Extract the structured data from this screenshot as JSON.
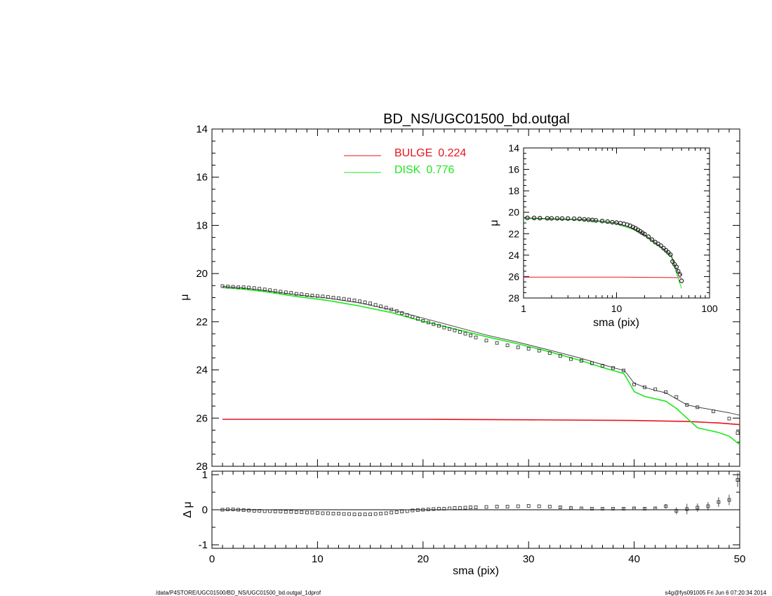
{
  "page": {
    "title": "BD_NS/UGC01500_bd.outgal",
    "footer_left": "/data/P4STORE/UGC01500/BD_NS/UGC01500_bd.outgal_1dprof",
    "footer_right": "s4g@fys091005  Fri Jun  6 07:20:34 2014"
  },
  "colors": {
    "bulge": "#e8141e",
    "disk": "#1ee81e",
    "data": "#000000",
    "model": "#444444"
  },
  "chart_data": [
    {
      "name": "main-profile",
      "type": "line",
      "title": "BD_NS/UGC01500_bd.outgal",
      "xlabel": "",
      "ylabel": "μ",
      "xlim": [
        0,
        50
      ],
      "ylim": [
        28,
        14
      ],
      "y_inverted": true,
      "yticks": [
        14,
        16,
        18,
        20,
        22,
        24,
        26,
        28
      ],
      "legend": {
        "position": "top-center",
        "entries": [
          {
            "label": "BULGE",
            "value": "0.224",
            "color": "#e8141e"
          },
          {
            "label": "DISK",
            "value": "0.776",
            "color": "#1ee81e"
          }
        ]
      },
      "series": [
        {
          "name": "BULGE",
          "color": "#e8141e",
          "x": [
            1,
            10,
            20,
            30,
            40,
            45,
            48,
            50
          ],
          "y": [
            26.05,
            26.05,
            26.05,
            26.07,
            26.1,
            26.14,
            26.2,
            26.27
          ]
        },
        {
          "name": "DISK",
          "color": "#1ee81e",
          "x": [
            1,
            3,
            5,
            8,
            11,
            14,
            17,
            20,
            23,
            26,
            29,
            32,
            35,
            37,
            39,
            39.3,
            40,
            41,
            42,
            43,
            44,
            45,
            46,
            47,
            48,
            49,
            50
          ],
          "y": [
            20.58,
            20.65,
            20.75,
            20.95,
            21.12,
            21.35,
            21.62,
            21.98,
            22.3,
            22.62,
            22.92,
            23.25,
            23.62,
            23.9,
            24.15,
            24.35,
            24.9,
            25.1,
            25.2,
            25.3,
            25.6,
            26.0,
            26.4,
            26.5,
            26.6,
            26.75,
            27.1
          ]
        },
        {
          "name": "model",
          "color": "#444444",
          "x": [
            1,
            3,
            5,
            8,
            11,
            14,
            17,
            20,
            23,
            26,
            29,
            32,
            35,
            37,
            39,
            39.3,
            40,
            41,
            42,
            43,
            44,
            45,
            46,
            47,
            48,
            49,
            50
          ],
          "y": [
            20.53,
            20.6,
            20.7,
            20.88,
            21.02,
            21.22,
            21.5,
            21.85,
            22.2,
            22.55,
            22.85,
            23.18,
            23.52,
            23.78,
            24.02,
            24.15,
            24.55,
            24.72,
            24.85,
            24.95,
            25.2,
            25.45,
            25.55,
            25.62,
            25.7,
            25.78,
            25.88
          ]
        }
      ],
      "observed": {
        "x": [
          1,
          1.5,
          2,
          2.5,
          3,
          3.5,
          4,
          4.5,
          5,
          5.5,
          6,
          6.5,
          7,
          7.5,
          8,
          8.5,
          9,
          9.5,
          10,
          10.5,
          11,
          11.5,
          12,
          12.5,
          13,
          13.5,
          14,
          14.5,
          15,
          15.5,
          16,
          16.5,
          17,
          17.5,
          18,
          18.5,
          19,
          19.5,
          20,
          20.5,
          21,
          21.5,
          22,
          22.5,
          23,
          23.5,
          24,
          24.5,
          25,
          26,
          27,
          28,
          29,
          30,
          31,
          32,
          33,
          34,
          35,
          36,
          37,
          38,
          39,
          40,
          41,
          42,
          43,
          44,
          45,
          46,
          47.5,
          49,
          49.8
        ],
        "y": [
          20.52,
          20.54,
          20.55,
          20.57,
          20.57,
          20.58,
          20.6,
          20.63,
          20.66,
          20.69,
          20.72,
          20.75,
          20.78,
          20.8,
          20.84,
          20.86,
          20.89,
          20.91,
          20.93,
          20.95,
          20.97,
          21.0,
          21.02,
          21.05,
          21.08,
          21.11,
          21.15,
          21.19,
          21.24,
          21.3,
          21.36,
          21.42,
          21.49,
          21.56,
          21.64,
          21.72,
          21.8,
          21.88,
          21.96,
          22.03,
          22.1,
          22.17,
          22.24,
          22.3,
          22.36,
          22.43,
          22.5,
          22.57,
          22.65,
          22.78,
          22.88,
          22.98,
          23.06,
          23.12,
          23.2,
          23.3,
          23.42,
          23.55,
          23.62,
          23.72,
          23.82,
          23.92,
          24.02,
          24.6,
          24.72,
          24.8,
          24.92,
          25.12,
          25.45,
          25.55,
          25.72,
          26.02,
          26.62
        ]
      }
    },
    {
      "name": "residuals",
      "type": "scatter",
      "xlabel": "sma (pix)",
      "ylabel": "Δ μ",
      "xlim": [
        0,
        50
      ],
      "ylim": [
        -1.1,
        1.1
      ],
      "xticks": [
        0,
        10,
        20,
        30,
        40,
        50
      ],
      "yticks": [
        -1,
        0,
        1
      ],
      "x": [
        1,
        1.5,
        2,
        2.5,
        3,
        3.5,
        4,
        4.5,
        5,
        5.5,
        6,
        6.5,
        7,
        7.5,
        8,
        8.5,
        9,
        9.5,
        10,
        10.5,
        11,
        11.5,
        12,
        12.5,
        13,
        13.5,
        14,
        14.5,
        15,
        15.5,
        16,
        16.5,
        17,
        17.5,
        18,
        18.5,
        19,
        19.5,
        20,
        20.5,
        21,
        21.5,
        22,
        22.5,
        23,
        23.5,
        24,
        24.5,
        25,
        26,
        27,
        28,
        29,
        30,
        31,
        32,
        33,
        34,
        35,
        36,
        37,
        38,
        39,
        40,
        41,
        42,
        43,
        44,
        45,
        46,
        47,
        48,
        49,
        49.8
      ],
      "y": [
        0.0,
        0.01,
        0.01,
        0.0,
        -0.01,
        -0.02,
        -0.03,
        -0.03,
        -0.04,
        -0.04,
        -0.05,
        -0.05,
        -0.06,
        -0.06,
        -0.07,
        -0.07,
        -0.08,
        -0.08,
        -0.09,
        -0.1,
        -0.1,
        -0.11,
        -0.11,
        -0.12,
        -0.12,
        -0.13,
        -0.13,
        -0.13,
        -0.13,
        -0.12,
        -0.11,
        -0.1,
        -0.08,
        -0.07,
        -0.05,
        -0.04,
        -0.02,
        -0.01,
        0.0,
        0.01,
        0.02,
        0.03,
        0.03,
        0.04,
        0.05,
        0.05,
        0.06,
        0.07,
        0.07,
        0.08,
        0.09,
        0.09,
        0.1,
        0.11,
        0.1,
        0.09,
        0.07,
        0.05,
        0.04,
        0.03,
        0.03,
        0.03,
        0.03,
        0.04,
        0.03,
        0.04,
        0.1,
        -0.03,
        0.02,
        0.06,
        0.1,
        0.22,
        0.28,
        0.85
      ],
      "err": [
        0.01,
        0.01,
        0.01,
        0.01,
        0.01,
        0.01,
        0.01,
        0.01,
        0.01,
        0.01,
        0.01,
        0.01,
        0.01,
        0.01,
        0.01,
        0.01,
        0.01,
        0.01,
        0.01,
        0.01,
        0.01,
        0.01,
        0.01,
        0.01,
        0.01,
        0.01,
        0.01,
        0.01,
        0.01,
        0.01,
        0.01,
        0.01,
        0.01,
        0.01,
        0.01,
        0.01,
        0.01,
        0.01,
        0.01,
        0.01,
        0.01,
        0.01,
        0.01,
        0.01,
        0.01,
        0.01,
        0.01,
        0.01,
        0.01,
        0.01,
        0.01,
        0.01,
        0.01,
        0.01,
        0.01,
        0.01,
        0.02,
        0.02,
        0.02,
        0.02,
        0.02,
        0.02,
        0.03,
        0.03,
        0.04,
        0.04,
        0.06,
        0.1,
        0.15,
        0.12,
        0.12,
        0.14,
        0.15,
        0.2
      ]
    },
    {
      "name": "inset-log-profile",
      "type": "line",
      "xlabel": "sma (pix)",
      "ylabel": "μ",
      "xscale": "log",
      "xlim": [
        1,
        100
      ],
      "ylim": [
        28,
        14
      ],
      "y_inverted": true,
      "xtick_labels": [
        "1",
        "10",
        "100"
      ],
      "yticks": [
        14,
        16,
        18,
        20,
        22,
        24,
        26,
        28
      ],
      "series": [
        {
          "name": "BULGE",
          "color": "#e8141e",
          "x": [
            1,
            10,
            30,
            50
          ],
          "y": [
            26.05,
            26.05,
            26.08,
            26.1
          ]
        },
        {
          "name": "DISK",
          "color": "#1ee81e",
          "x": [
            1,
            5,
            10,
            15,
            20,
            25,
            30,
            35,
            39,
            42,
            46,
            50
          ],
          "y": [
            20.58,
            20.75,
            21.1,
            21.6,
            22.2,
            22.8,
            23.3,
            23.8,
            24.2,
            25.1,
            26.2,
            27.1
          ]
        },
        {
          "name": "model",
          "color": "#444444",
          "x": [
            1,
            5,
            10,
            15,
            20,
            25,
            30,
            35,
            39,
            42,
            46,
            50
          ],
          "y": [
            20.53,
            20.7,
            21.0,
            21.5,
            22.1,
            22.7,
            23.2,
            23.7,
            24.05,
            24.9,
            25.55,
            25.9
          ]
        }
      ],
      "observed": {
        "x": [
          1.1,
          1.3,
          1.5,
          1.8,
          2,
          2.3,
          2.6,
          3,
          3.5,
          4,
          4.5,
          5,
          5.5,
          6,
          7,
          8,
          9,
          10,
          11,
          12,
          13,
          14,
          15,
          16,
          17,
          18,
          19,
          20,
          22,
          24,
          26,
          28,
          30,
          32,
          34,
          36,
          38,
          40,
          42,
          44,
          46,
          48,
          50
        ],
        "y": [
          20.52,
          20.53,
          20.55,
          20.56,
          20.57,
          20.57,
          20.58,
          20.59,
          20.6,
          20.62,
          20.66,
          20.69,
          20.72,
          20.76,
          20.82,
          20.87,
          20.93,
          20.97,
          21.02,
          21.08,
          21.16,
          21.26,
          21.38,
          21.5,
          21.64,
          21.78,
          21.92,
          22.04,
          22.28,
          22.55,
          22.78,
          22.95,
          23.12,
          23.35,
          23.55,
          23.75,
          23.95,
          24.6,
          24.85,
          25.1,
          25.5,
          25.8,
          26.4
        ]
      }
    }
  ]
}
